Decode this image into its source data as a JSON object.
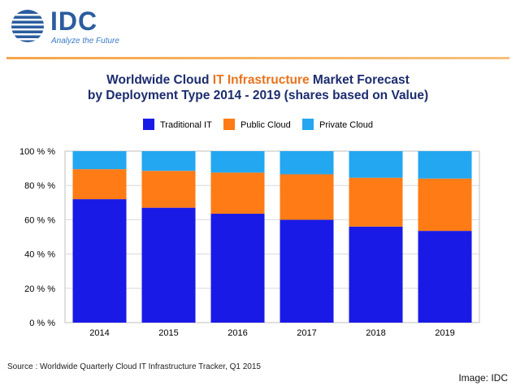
{
  "logo": {
    "brand": "IDC",
    "tagline": "Analyze the Future",
    "brand_color": "#2a5d9e"
  },
  "title": {
    "line1_a": "Worldwide Cloud ",
    "line1_hl": "IT Infrastructure",
    "line1_b": " Market Forecast",
    "line2": "by Deployment Type  2014 - 2019 (shares based on Value)"
  },
  "chart_data": {
    "type": "bar",
    "stacked": true,
    "categories": [
      "2014",
      "2015",
      "2016",
      "2017",
      "2018",
      "2019"
    ],
    "series": [
      {
        "name": "Traditional IT",
        "color": "#1a1ae6",
        "values": [
          72,
          67,
          63.5,
          60,
          56,
          53.5
        ]
      },
      {
        "name": "Public Cloud",
        "color": "#ff7b15",
        "values": [
          17.5,
          21.5,
          24,
          26.5,
          28.5,
          30.5
        ]
      },
      {
        "name": "Private Cloud",
        "color": "#23a7f0",
        "values": [
          10.5,
          11.5,
          12.5,
          13.5,
          15.5,
          16
        ]
      }
    ],
    "ylim": [
      0,
      100
    ],
    "yticks": [
      "0 % %",
      "20 % %",
      "40 % %",
      "60 % %",
      "80 % %",
      "100 % %"
    ],
    "grid": true,
    "legend_position": "top"
  },
  "source": "Source : Worldwide Quarterly Cloud IT Infrastructure Tracker, Q1 2015",
  "credit": "Image: IDC"
}
